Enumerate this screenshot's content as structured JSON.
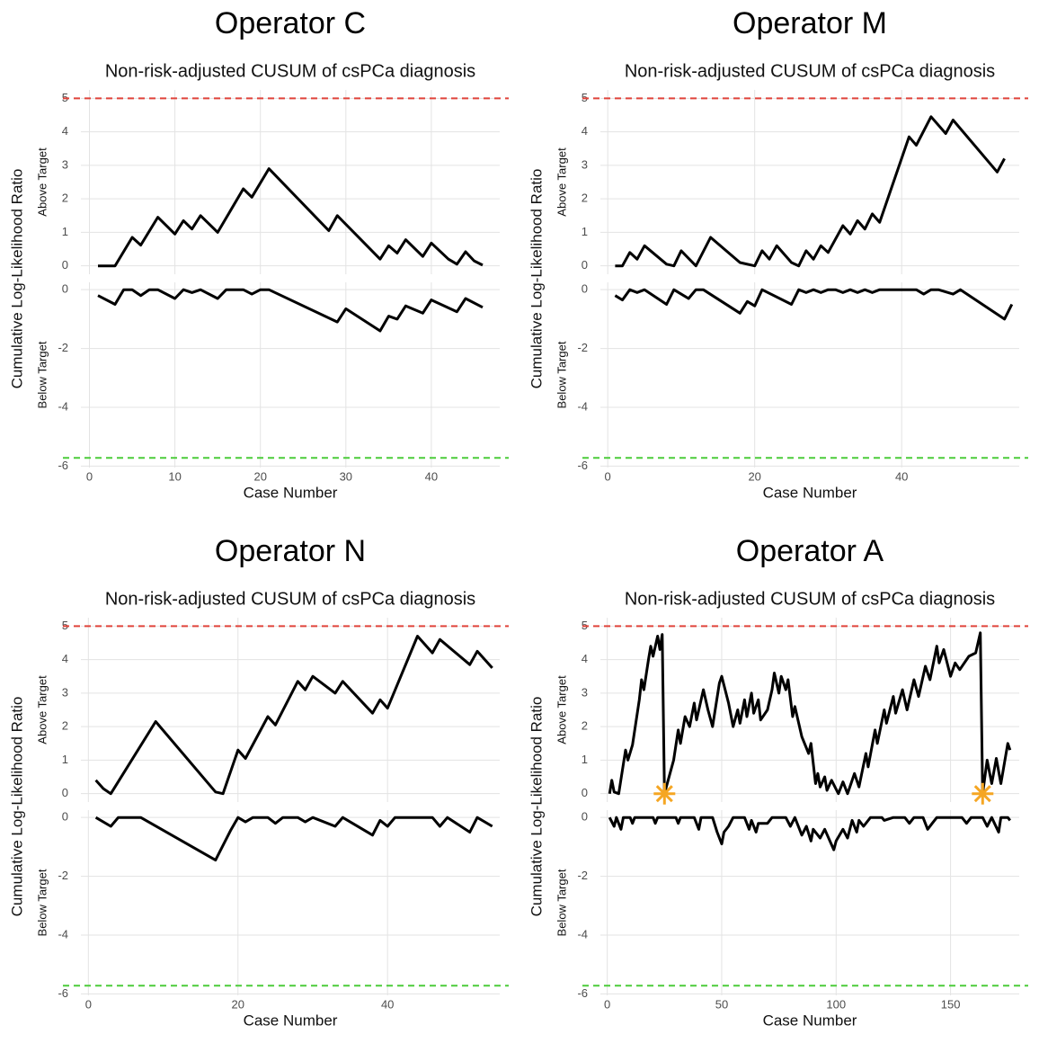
{
  "chart_data": [
    {
      "type": "line",
      "title": "Operator C",
      "subtitle": "Non-risk-adjusted CUSUM of csPCa diagnosis",
      "ylabel": "Cumulative Log-Likelihood Ratio",
      "xlabel": "Case Number",
      "color": "#000000",
      "grid": true,
      "xlim": [
        -1,
        48
      ],
      "xticks": [
        0,
        10,
        20,
        30,
        40
      ],
      "panels": [
        {
          "label": "Above Target",
          "ylim": [
            -0.25,
            5.25
          ],
          "yticks": [
            0,
            1,
            2,
            3,
            4,
            5
          ],
          "threshold": 5,
          "threshold_color": "#e0433a",
          "x": [
            1,
            3,
            5,
            6,
            8,
            10,
            11,
            12,
            13,
            15,
            18,
            19,
            21,
            28,
            29,
            34,
            35,
            36,
            37,
            39,
            40,
            42,
            43,
            44,
            45,
            46
          ],
          "values": [
            0,
            0,
            0.85,
            0.62,
            1.45,
            0.95,
            1.35,
            1.1,
            1.5,
            1.0,
            2.3,
            2.05,
            2.9,
            1.05,
            1.5,
            0.2,
            0.6,
            0.38,
            0.78,
            0.28,
            0.68,
            0.2,
            0.05,
            0.42,
            0.15,
            0.02
          ]
        },
        {
          "label": "Below Target",
          "ylim": [
            -6.05,
            0.25
          ],
          "yticks": [
            0,
            -2,
            -4,
            -6
          ],
          "threshold": -5.72,
          "threshold_color": "#4ccc3a",
          "x": [
            1,
            3,
            4,
            5,
            6,
            7,
            8,
            10,
            11,
            12,
            13,
            15,
            16,
            18,
            19,
            20,
            21,
            29,
            30,
            34,
            35,
            36,
            37,
            39,
            40,
            43,
            44,
            46
          ],
          "values": [
            -0.2,
            -0.5,
            0,
            0,
            -0.2,
            0,
            0,
            -0.3,
            0,
            -0.1,
            0,
            -0.3,
            0,
            0,
            -0.15,
            0,
            0,
            -1.1,
            -0.65,
            -1.4,
            -0.9,
            -1.0,
            -0.55,
            -0.8,
            -0.35,
            -0.75,
            -0.3,
            -0.6
          ]
        }
      ]
    },
    {
      "type": "line",
      "title": "Operator M",
      "subtitle": "Non-risk-adjusted CUSUM of csPCa diagnosis",
      "ylabel": "Cumulative Log-Likelihood Ratio",
      "xlabel": "Case Number",
      "color": "#000000",
      "grid": true,
      "xlim": [
        -1,
        56
      ],
      "xticks": [
        0,
        20,
        40
      ],
      "panels": [
        {
          "label": "Above Target",
          "ylim": [
            -0.25,
            5.25
          ],
          "yticks": [
            0,
            1,
            2,
            3,
            4,
            5
          ],
          "threshold": 5,
          "threshold_color": "#e0433a",
          "x": [
            1,
            2,
            3,
            4,
            5,
            8,
            9,
            10,
            12,
            14,
            18,
            20,
            21,
            22,
            23,
            25,
            26,
            27,
            28,
            29,
            30,
            32,
            33,
            34,
            35,
            36,
            37,
            41,
            42,
            44,
            46,
            47,
            53,
            54
          ],
          "values": [
            0,
            0,
            0.4,
            0.2,
            0.6,
            0.05,
            0,
            0.45,
            0,
            0.85,
            0.1,
            0,
            0.45,
            0.2,
            0.6,
            0.1,
            0,
            0.45,
            0.2,
            0.6,
            0.4,
            1.2,
            0.95,
            1.35,
            1.1,
            1.55,
            1.3,
            3.85,
            3.6,
            4.45,
            3.95,
            4.35,
            2.8,
            3.2
          ]
        },
        {
          "label": "Below Target",
          "ylim": [
            -6.05,
            0.25
          ],
          "yticks": [
            0,
            -2,
            -4,
            -6
          ],
          "threshold": -5.72,
          "threshold_color": "#4ccc3a",
          "x": [
            1,
            2,
            3,
            4,
            5,
            8,
            9,
            11,
            12,
            13,
            18,
            19,
            20,
            21,
            25,
            26,
            27,
            28,
            29,
            30,
            31,
            32,
            33,
            34,
            35,
            36,
            37,
            42,
            43,
            44,
            45,
            47,
            48,
            54,
            55
          ],
          "values": [
            -0.2,
            -0.35,
            0,
            -0.1,
            0,
            -0.5,
            0,
            -0.3,
            0,
            0,
            -0.8,
            -0.4,
            -0.55,
            0,
            -0.5,
            0,
            -0.1,
            0,
            -0.1,
            0,
            0,
            -0.1,
            0,
            -0.1,
            0,
            -0.1,
            0,
            0,
            -0.15,
            0,
            0,
            -0.15,
            0,
            -1.0,
            -0.5
          ]
        }
      ]
    },
    {
      "type": "line",
      "title": "Operator N",
      "subtitle": "Non-risk-adjusted CUSUM of csPCa diagnosis",
      "ylabel": "Cumulative Log-Likelihood Ratio",
      "xlabel": "Case Number",
      "color": "#000000",
      "grid": true,
      "xlim": [
        -1,
        55
      ],
      "xticks": [
        0,
        20,
        40
      ],
      "panels": [
        {
          "label": "Above Target",
          "ylim": [
            -0.25,
            5.25
          ],
          "yticks": [
            0,
            1,
            2,
            3,
            4,
            5
          ],
          "threshold": 5,
          "threshold_color": "#e0433a",
          "x": [
            1,
            2,
            3,
            9,
            17,
            18,
            20,
            21,
            24,
            25,
            28,
            29,
            30,
            33,
            34,
            38,
            39,
            40,
            44,
            46,
            47,
            51,
            52,
            54
          ],
          "values": [
            0.4,
            0.15,
            0,
            2.15,
            0.05,
            0,
            1.3,
            1.05,
            2.3,
            2.05,
            3.35,
            3.1,
            3.5,
            3.0,
            3.35,
            2.4,
            2.8,
            2.55,
            4.7,
            4.2,
            4.6,
            3.85,
            4.25,
            3.75
          ]
        },
        {
          "label": "Below Target",
          "ylim": [
            -6.05,
            0.25
          ],
          "yticks": [
            0,
            -2,
            -4,
            -6
          ],
          "threshold": -5.72,
          "threshold_color": "#4ccc3a",
          "x": [
            1,
            3,
            4,
            7,
            17,
            19,
            20,
            21,
            22,
            24,
            25,
            26,
            28,
            29,
            30,
            33,
            34,
            38,
            39,
            40,
            41,
            46,
            47,
            48,
            51,
            52,
            54
          ],
          "values": [
            0,
            -0.3,
            0,
            0,
            -1.45,
            -0.45,
            0,
            -0.15,
            0,
            0,
            -0.2,
            0,
            0,
            -0.15,
            0,
            -0.3,
            0,
            -0.6,
            -0.1,
            -0.3,
            0,
            0,
            -0.3,
            0,
            -0.5,
            0,
            -0.3
          ]
        }
      ]
    },
    {
      "type": "line",
      "title": "Operator A",
      "subtitle": "Non-risk-adjusted CUSUM of csPCa diagnosis",
      "ylabel": "Cumulative Log-Likelihood Ratio",
      "xlabel": "Case Number",
      "color": "#000000",
      "grid": true,
      "xlim": [
        -3,
        180
      ],
      "xticks": [
        0,
        50,
        100,
        150
      ],
      "signals": {
        "x": [
          25,
          164
        ],
        "values": [
          0,
          0
        ],
        "color": "#f5a623"
      },
      "panels": [
        {
          "label": "Above Target",
          "ylim": [
            -0.25,
            5.25
          ],
          "yticks": [
            0,
            1,
            2,
            3,
            4,
            5
          ],
          "threshold": 5,
          "threshold_color": "#e0433a",
          "x": [
            1,
            2,
            3,
            5,
            8,
            9,
            11,
            14,
            15,
            16,
            18,
            19,
            20,
            22,
            23,
            24,
            25,
            29,
            31,
            32,
            34,
            36,
            38,
            39,
            42,
            44,
            46,
            49,
            50,
            53,
            55,
            57,
            58,
            60,
            61,
            63,
            64,
            66,
            67,
            70,
            72,
            73,
            75,
            76,
            78,
            79,
            81,
            82,
            85,
            88,
            89,
            91,
            92,
            93,
            95,
            96,
            98,
            101,
            103,
            105,
            108,
            110,
            113,
            114,
            117,
            118,
            121,
            122,
            125,
            126,
            129,
            131,
            134,
            136,
            139,
            141,
            144,
            145,
            147,
            150,
            152,
            154,
            158,
            161,
            163,
            164,
            166,
            168,
            170,
            172,
            175,
            176
          ],
          "values": [
            0,
            0.4,
            0.05,
            0,
            1.3,
            1.0,
            1.45,
            2.8,
            3.4,
            3.1,
            4.0,
            4.4,
            4.1,
            4.7,
            4.3,
            4.75,
            0,
            1.0,
            1.9,
            1.5,
            2.3,
            2.0,
            2.7,
            2.2,
            3.1,
            2.5,
            2.0,
            3.3,
            3.5,
            2.7,
            2.0,
            2.5,
            2.1,
            2.8,
            2.3,
            3.0,
            2.4,
            2.8,
            2.2,
            2.5,
            3.1,
            3.6,
            3.0,
            3.5,
            3.1,
            3.4,
            2.3,
            2.6,
            1.7,
            1.2,
            1.5,
            0.3,
            0.6,
            0.2,
            0.5,
            0.1,
            0.4,
            0,
            0.35,
            0,
            0.6,
            0.2,
            1.2,
            0.8,
            1.9,
            1.5,
            2.5,
            2.1,
            2.9,
            2.4,
            3.1,
            2.5,
            3.4,
            2.9,
            3.8,
            3.4,
            4.4,
            3.9,
            4.3,
            3.5,
            3.9,
            3.7,
            4.1,
            4.2,
            4.8,
            0,
            1.0,
            0.3,
            1.05,
            0.3,
            1.5,
            1.3
          ]
        },
        {
          "label": "Below Target",
          "ylim": [
            -6.05,
            0.25
          ],
          "yticks": [
            0,
            -2,
            -4,
            -6
          ],
          "threshold": -5.72,
          "threshold_color": "#4ccc3a",
          "x": [
            1,
            3,
            4,
            6,
            7,
            10,
            11,
            12,
            20,
            21,
            22,
            30,
            31,
            32,
            38,
            40,
            41,
            46,
            48,
            50,
            51,
            53,
            55,
            60,
            62,
            63,
            65,
            66,
            70,
            72,
            78,
            80,
            82,
            85,
            87,
            89,
            90,
            93,
            95,
            99,
            100,
            103,
            105,
            107,
            109,
            110,
            112,
            115,
            120,
            121,
            125,
            130,
            132,
            134,
            138,
            140,
            142,
            144,
            155,
            157,
            159,
            164,
            166,
            168,
            171,
            172,
            175,
            176
          ],
          "values": [
            0,
            -0.3,
            0,
            -0.4,
            0,
            0,
            -0.2,
            0,
            0,
            -0.2,
            0,
            0,
            -0.2,
            0,
            0,
            -0.4,
            0,
            0,
            -0.5,
            -0.9,
            -0.5,
            -0.3,
            0,
            0,
            -0.4,
            -0.1,
            -0.5,
            -0.2,
            -0.2,
            0,
            0,
            -0.3,
            0,
            -0.6,
            -0.3,
            -0.8,
            -0.4,
            -0.7,
            -0.4,
            -1.1,
            -0.8,
            -0.4,
            -0.7,
            -0.1,
            -0.5,
            -0.1,
            -0.3,
            0,
            0,
            -0.1,
            0,
            0,
            -0.2,
            0,
            0,
            -0.4,
            -0.2,
            0,
            0,
            -0.2,
            0,
            0,
            -0.3,
            0,
            -0.5,
            0,
            0,
            -0.1
          ]
        }
      ]
    }
  ]
}
